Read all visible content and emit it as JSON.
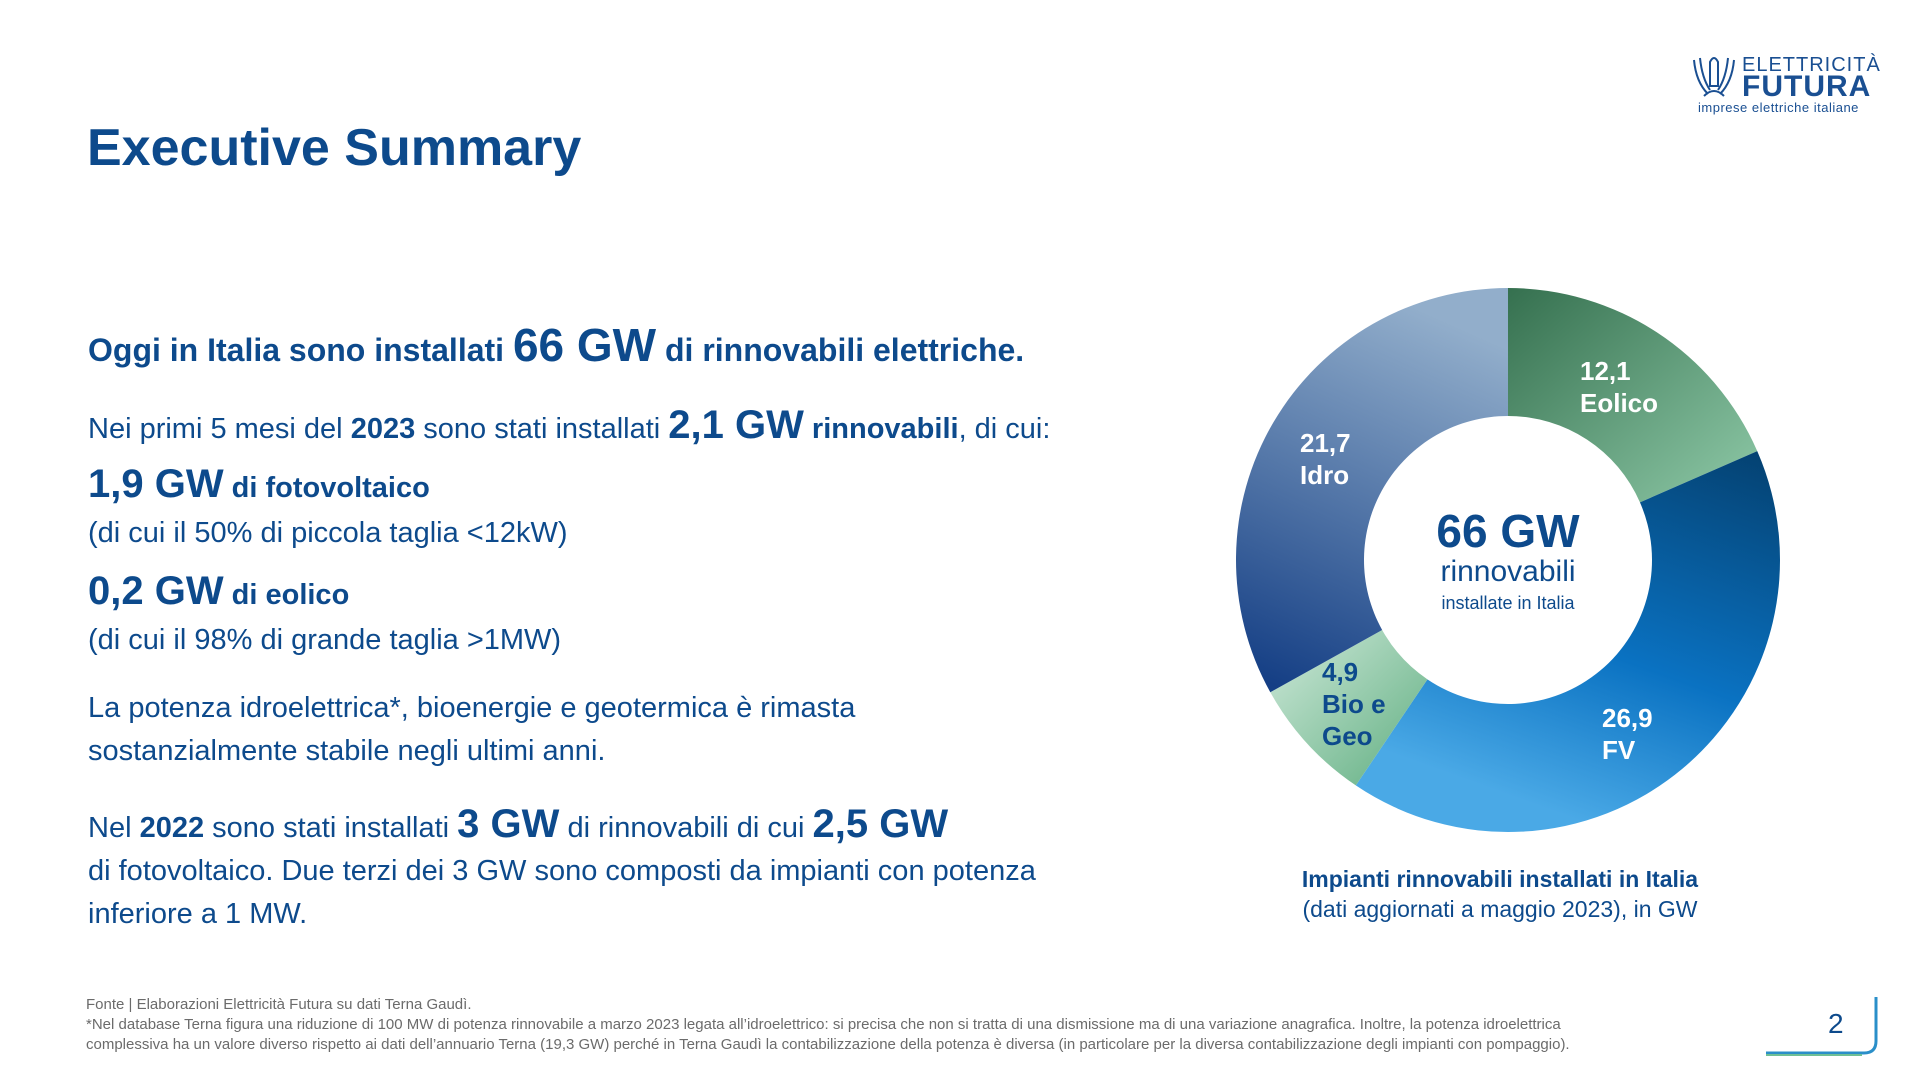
{
  "header": {
    "title": "Executive Summary",
    "logo": {
      "line1": "ELETTRICITÀ",
      "line2": "FUTURA",
      "tagline": "imprese elettriche italiane"
    }
  },
  "main": {
    "headline": {
      "pre": "Oggi in Italia sono installati ",
      "value": "66 GW",
      "post": " di rinnovabili elettriche."
    },
    "p1": {
      "a": "Nei primi 5 mesi del ",
      "year": "2023",
      "b": " sono stati installati ",
      "value": "2,1 GW",
      "c": " rinnovabili",
      "d": ", di cui:"
    },
    "fv": {
      "value": "1,9 GW",
      "label": " di fotovoltaico",
      "note": "(di cui il 50% di piccola taglia <12kW)"
    },
    "eolico": {
      "value": "0,2 GW",
      "label": " di eolico",
      "note": "(di cui il 98% di grande taglia >1MW)"
    },
    "p2": [
      "La potenza idroelettrica*, bioenergie e geotermica è rimasta",
      "sostanzialmente stabile negli ultimi anni."
    ],
    "p3": {
      "a": "Nel ",
      "year": "2022",
      "b": " sono stati installati ",
      "v1": "3 GW",
      "c": " di rinnovabili di cui ",
      "v2": "2,5 GW",
      "line2": "di fotovoltaico. Due terzi dei 3 GW sono composti da impianti con potenza",
      "line3": "inferiore a 1 MW."
    }
  },
  "chart_data": {
    "type": "pie",
    "subtype": "donut",
    "unit": "GW",
    "categories": [
      "Eolico",
      "FV",
      "Bio e Geo",
      "Idro"
    ],
    "values": [
      12.1,
      26.9,
      4.9,
      21.7
    ],
    "value_labels": [
      "12,1",
      "26,9",
      "4,9",
      "21,7"
    ],
    "colors": [
      "#4f9a72",
      "#0a6fbf",
      "#a8d8bd",
      "#4a77ae"
    ],
    "center": {
      "value": "66 GW",
      "line2": "rinnovabili",
      "line3": "installate in Italia"
    },
    "title": "Impianti rinnovabili installati in Italia",
    "subtitle": "(dati aggiornati a maggio 2023), in GW"
  },
  "footer": {
    "source": "Fonte | Elaborazioni Elettricità Futura su dati Terna Gaudì.",
    "note1": "*Nel database Terna figura una riduzione di 100 MW di potenza rinnovabile a marzo 2023 legata all’idroelettrico: si precisa che non si tratta di una dismissione ma di una variazione anagrafica. Inoltre, la potenza idroelettrica",
    "note2": "complessiva ha un valore diverso rispetto ai dati dell’annuario Terna (19,3 GW) perché in Terna Gaudì la contabilizzazione della potenza è diversa (in particolare per la diversa contabilizzazione degli impianti con pompaggio).",
    "page": "2"
  }
}
